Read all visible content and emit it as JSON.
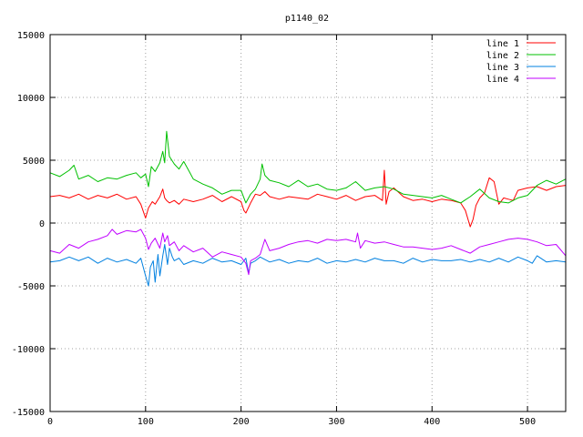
{
  "chart_data": {
    "type": "line",
    "title": "p1140_02",
    "xlabel": "",
    "ylabel": "",
    "xlim": [
      0,
      540
    ],
    "ylim": [
      -15000,
      15000
    ],
    "xticks": [
      0,
      100,
      200,
      300,
      400,
      500
    ],
    "yticks": [
      -15000,
      -10000,
      -5000,
      0,
      5000,
      10000,
      15000
    ],
    "grid": true,
    "legend_position": "top-right",
    "series": [
      {
        "name": "line 1",
        "color": "#ff0000",
        "x": [
          0,
          10,
          20,
          30,
          40,
          50,
          60,
          70,
          80,
          90,
          95,
          100,
          103,
          107,
          110,
          115,
          118,
          120,
          122,
          125,
          130,
          135,
          140,
          150,
          160,
          170,
          180,
          190,
          200,
          203,
          205,
          210,
          215,
          220,
          225,
          230,
          240,
          250,
          260,
          270,
          280,
          290,
          300,
          310,
          320,
          330,
          340,
          348,
          350,
          352,
          355,
          360,
          370,
          380,
          390,
          400,
          410,
          420,
          430,
          435,
          440,
          443,
          446,
          450,
          455,
          460,
          465,
          470,
          475,
          480,
          485,
          490,
          500,
          510,
          520,
          530,
          540
        ],
        "y": [
          2100,
          2200,
          2000,
          2300,
          1900,
          2200,
          2000,
          2300,
          1900,
          2100,
          1500,
          400,
          1200,
          1700,
          1500,
          2100,
          2700,
          2000,
          1800,
          1600,
          1800,
          1500,
          1900,
          1700,
          1900,
          2200,
          1700,
          2100,
          1700,
          1000,
          800,
          1600,
          2300,
          2200,
          2500,
          2100,
          1900,
          2100,
          2000,
          1900,
          2300,
          2100,
          1900,
          2200,
          1800,
          2100,
          2200,
          1800,
          4200,
          1500,
          2500,
          2800,
          2100,
          1800,
          1900,
          1700,
          1900,
          1800,
          1600,
          1000,
          -300,
          300,
          1400,
          2000,
          2400,
          3600,
          3300,
          1500,
          2000,
          1900,
          1800,
          2600,
          2800,
          2900,
          2600,
          2900,
          3000
        ]
      },
      {
        "name": "line 2",
        "color": "#00c000",
        "x": [
          0,
          10,
          20,
          25,
          30,
          40,
          50,
          60,
          70,
          80,
          90,
          95,
          100,
          103,
          106,
          110,
          115,
          118,
          120,
          122,
          125,
          130,
          135,
          140,
          145,
          150,
          160,
          170,
          180,
          190,
          200,
          205,
          210,
          215,
          220,
          222,
          225,
          230,
          240,
          250,
          260,
          270,
          280,
          290,
          300,
          310,
          320,
          330,
          340,
          350,
          360,
          370,
          380,
          390,
          400,
          410,
          420,
          430,
          440,
          450,
          460,
          470,
          480,
          490,
          500,
          510,
          520,
          530,
          540
        ],
        "y": [
          4000,
          3700,
          4200,
          4600,
          3500,
          3800,
          3300,
          3600,
          3500,
          3800,
          4000,
          3600,
          3900,
          2900,
          4500,
          4100,
          4800,
          5700,
          4800,
          7300,
          5300,
          4700,
          4300,
          4900,
          4200,
          3500,
          3100,
          2800,
          2300,
          2600,
          2600,
          1600,
          2300,
          2700,
          3500,
          4700,
          3800,
          3400,
          3200,
          2900,
          3400,
          2900,
          3100,
          2700,
          2600,
          2800,
          3300,
          2600,
          2800,
          2900,
          2700,
          2300,
          2200,
          2100,
          2000,
          2200,
          1900,
          1600,
          2100,
          2700,
          2000,
          1700,
          1600,
          2000,
          2200,
          3000,
          3400,
          3100,
          3500
        ]
      },
      {
        "name": "line 3",
        "color": "#0080e0",
        "x": [
          0,
          10,
          20,
          30,
          40,
          50,
          60,
          70,
          80,
          90,
          95,
          100,
          103,
          105,
          108,
          110,
          113,
          115,
          118,
          120,
          123,
          125,
          128,
          130,
          135,
          140,
          150,
          160,
          170,
          180,
          190,
          200,
          205,
          208,
          210,
          215,
          220,
          230,
          240,
          250,
          260,
          270,
          280,
          290,
          300,
          310,
          320,
          330,
          340,
          350,
          360,
          370,
          380,
          390,
          400,
          410,
          420,
          430,
          440,
          450,
          460,
          470,
          480,
          490,
          500,
          505,
          510,
          520,
          530,
          540
        ],
        "y": [
          -3100,
          -3000,
          -2700,
          -3000,
          -2700,
          -3200,
          -2800,
          -3100,
          -2900,
          -3200,
          -2800,
          -4200,
          -5000,
          -3500,
          -3000,
          -4700,
          -2500,
          -4200,
          -2600,
          -1700,
          -3300,
          -2000,
          -2700,
          -3000,
          -2800,
          -3300,
          -3000,
          -3200,
          -2800,
          -3100,
          -3000,
          -3300,
          -2800,
          -4000,
          -3200,
          -3000,
          -2700,
          -3100,
          -2900,
          -3200,
          -3000,
          -3100,
          -2800,
          -3200,
          -3000,
          -3100,
          -2900,
          -3100,
          -2800,
          -3000,
          -3000,
          -3200,
          -2800,
          -3100,
          -2900,
          -3000,
          -3000,
          -2900,
          -3100,
          -2900,
          -3100,
          -2800,
          -3100,
          -2700,
          -3000,
          -3200,
          -2600,
          -3100,
          -3000,
          -3100
        ]
      },
      {
        "name": "line 4",
        "color": "#c000ff",
        "x": [
          0,
          10,
          20,
          30,
          40,
          50,
          60,
          65,
          70,
          80,
          90,
          95,
          100,
          103,
          106,
          110,
          115,
          118,
          120,
          123,
          125,
          130,
          135,
          140,
          150,
          160,
          170,
          180,
          190,
          200,
          205,
          208,
          210,
          215,
          220,
          225,
          230,
          240,
          250,
          260,
          270,
          280,
          290,
          300,
          310,
          320,
          322,
          325,
          330,
          340,
          350,
          360,
          370,
          380,
          390,
          400,
          410,
          420,
          430,
          440,
          450,
          460,
          470,
          480,
          490,
          500,
          510,
          520,
          530,
          540
        ],
        "y": [
          -2200,
          -2400,
          -1700,
          -2000,
          -1500,
          -1300,
          -1000,
          -500,
          -900,
          -600,
          -700,
          -500,
          -1200,
          -2100,
          -1600,
          -1200,
          -2000,
          -800,
          -1500,
          -1000,
          -1800,
          -1500,
          -2200,
          -1800,
          -2300,
          -2000,
          -2700,
          -2300,
          -2500,
          -2700,
          -3200,
          -4100,
          -3000,
          -2800,
          -2500,
          -1300,
          -2200,
          -2000,
          -1700,
          -1500,
          -1400,
          -1600,
          -1300,
          -1400,
          -1300,
          -1500,
          -800,
          -2000,
          -1400,
          -1600,
          -1500,
          -1700,
          -1900,
          -1900,
          -2000,
          -2100,
          -2000,
          -1800,
          -2100,
          -2400,
          -1900,
          -1700,
          -1500,
          -1300,
          -1200,
          -1300,
          -1500,
          -1800,
          -1700,
          -2600
        ]
      }
    ]
  }
}
